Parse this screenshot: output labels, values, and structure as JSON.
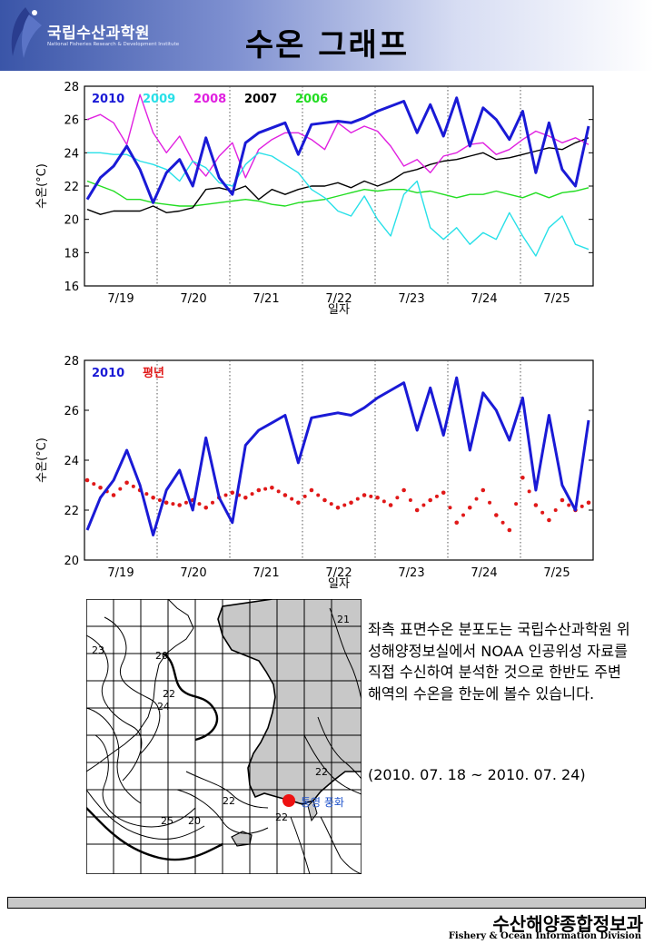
{
  "header": {
    "org_name": "국립수산과학원",
    "org_sub": "National Fisheries Research & Development Institute",
    "title": "수온 그래프"
  },
  "chart_data": [
    {
      "type": "line",
      "xlabel": "일자",
      "ylabel": "수온(°C)",
      "ylim": [
        16,
        28
      ],
      "yticks": [
        16,
        18,
        20,
        22,
        24,
        26,
        28
      ],
      "xticks": [
        "7/19",
        "7/20",
        "7/21",
        "7/22",
        "7/23",
        "7/24",
        "7/25"
      ],
      "grid": "vertical dotted",
      "legend": "top-left",
      "series": [
        {
          "name": "2010",
          "color": "#1a1ad6",
          "values": [
            21.2,
            22.5,
            23.2,
            24.4,
            23.0,
            21.0,
            22.8,
            23.6,
            22.0,
            24.9,
            22.5,
            21.5,
            24.6,
            25.2,
            25.5,
            25.8,
            23.9,
            25.7,
            25.8,
            25.9,
            25.8,
            26.1,
            26.5,
            26.8,
            27.1,
            25.2,
            26.9,
            25.0,
            27.3,
            24.4,
            26.7,
            26.0,
            24.8,
            26.5,
            22.8,
            25.8,
            23.0,
            22.0,
            25.6
          ]
        },
        {
          "name": "2009",
          "color": "#28e0e8",
          "values": [
            24.0,
            24.0,
            23.9,
            23.9,
            23.5,
            23.3,
            23.0,
            22.3,
            23.5,
            23.1,
            22.2,
            22.0,
            23.3,
            24.0,
            23.8,
            23.3,
            22.8,
            21.8,
            21.3,
            20.5,
            20.2,
            21.4,
            20.0,
            19.0,
            21.5,
            22.3,
            19.5,
            18.8,
            19.5,
            18.5,
            19.2,
            18.8,
            20.4,
            19.0,
            17.8,
            19.5,
            20.2,
            18.5,
            18.2
          ]
        },
        {
          "name": "2008",
          "color": "#e020e0",
          "values": [
            26.0,
            26.3,
            25.8,
            24.5,
            27.5,
            25.2,
            24.0,
            25.0,
            23.5,
            22.6,
            23.8,
            24.6,
            22.5,
            24.2,
            24.8,
            25.2,
            25.2,
            24.8,
            24.2,
            25.8,
            25.2,
            25.6,
            25.3,
            24.4,
            23.2,
            23.6,
            22.8,
            23.8,
            24.0,
            24.5,
            24.6,
            23.9,
            24.2,
            24.8,
            25.3,
            25.0,
            24.6,
            24.9,
            24.5
          ]
        },
        {
          "name": "2007",
          "color": "#000000",
          "values": [
            20.6,
            20.3,
            20.5,
            20.5,
            20.5,
            20.8,
            20.4,
            20.5,
            20.7,
            21.8,
            21.9,
            21.7,
            22.0,
            21.2,
            21.8,
            21.5,
            21.8,
            22.0,
            22.0,
            22.2,
            21.9,
            22.3,
            22.0,
            22.3,
            22.8,
            23.0,
            23.3,
            23.5,
            23.6,
            23.8,
            24.0,
            23.6,
            23.7,
            23.9,
            24.1,
            24.3,
            24.2,
            24.6,
            24.9
          ]
        },
        {
          "name": "2006",
          "color": "#22dd22",
          "values": [
            22.3,
            22.0,
            21.7,
            21.2,
            21.2,
            21.0,
            20.9,
            20.8,
            20.8,
            20.9,
            21.0,
            21.1,
            21.2,
            21.1,
            20.9,
            20.8,
            21.0,
            21.1,
            21.2,
            21.4,
            21.6,
            21.8,
            21.7,
            21.8,
            21.8,
            21.6,
            21.7,
            21.5,
            21.3,
            21.5,
            21.5,
            21.7,
            21.5,
            21.3,
            21.6,
            21.3,
            21.6,
            21.7,
            21.9
          ]
        }
      ]
    },
    {
      "type": "line",
      "xlabel": "일자",
      "ylabel": "수온(°C)",
      "ylim": [
        20,
        28
      ],
      "yticks": [
        20,
        22,
        24,
        26,
        28
      ],
      "xticks": [
        "7/19",
        "7/20",
        "7/21",
        "7/22",
        "7/23",
        "7/24",
        "7/25"
      ],
      "grid": "vertical dotted",
      "legend": "top-left",
      "series": [
        {
          "name": "2010",
          "color": "#1a1ad6",
          "values": [
            21.2,
            22.5,
            23.2,
            24.4,
            23.0,
            21.0,
            22.8,
            23.6,
            22.0,
            24.9,
            22.5,
            21.5,
            24.6,
            25.2,
            25.5,
            25.8,
            23.9,
            25.7,
            25.8,
            25.9,
            25.8,
            26.1,
            26.5,
            26.8,
            27.1,
            25.2,
            26.9,
            25.0,
            27.3,
            24.4,
            26.7,
            26.0,
            24.8,
            26.5,
            22.8,
            25.8,
            23.0,
            22.0,
            25.6
          ]
        },
        {
          "name": "평년",
          "color": "#e01818",
          "style": "dots",
          "values": [
            23.2,
            22.9,
            22.6,
            23.1,
            22.8,
            22.5,
            22.3,
            22.2,
            22.4,
            22.1,
            22.5,
            22.7,
            22.5,
            22.8,
            22.9,
            22.6,
            22.3,
            22.8,
            22.4,
            22.1,
            22.3,
            22.6,
            22.5,
            22.2,
            22.8,
            22.0,
            22.4,
            22.7,
            21.5,
            22.1,
            22.8,
            21.8,
            21.2,
            23.3,
            22.2,
            21.6,
            22.4,
            22.0,
            22.3
          ]
        }
      ]
    }
  ],
  "map": {
    "contour_labels": [
      "21",
      "23",
      "20",
      "22",
      "24",
      "22",
      "25",
      "20",
      "22",
      "22"
    ],
    "station_label": "통영 풍화",
    "station_color": "#ee1111"
  },
  "description": {
    "text": "좌측 표면수온 분포도는 국립수산과학원 위성해양정보실에서 NOAA 인공위성 자료를 직접 수신하여 분석한 것으로 한반도 주변해역의 수온을 한눈에 볼수 있습니다.",
    "date_range": "(2010. 07. 18 ~ 2010. 07. 24)"
  },
  "footer": {
    "org": "수산해양종합정보과",
    "eng": "Fishery & Ocean Information Division"
  }
}
